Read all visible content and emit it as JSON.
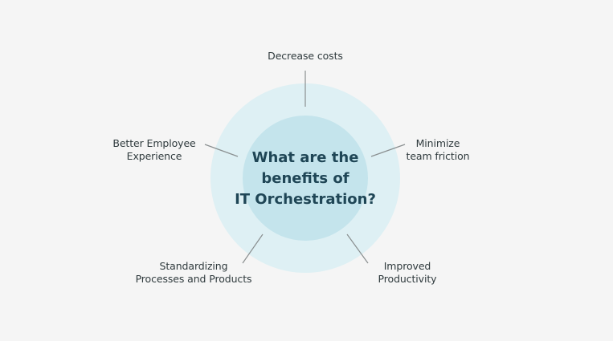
{
  "center": {
    "lines": [
      "What are the",
      "benefits of",
      "IT Orchestration?"
    ]
  },
  "benefits": [
    {
      "lines": [
        "Decrease costs"
      ]
    },
    {
      "lines": [
        "Minimize",
        "team friction"
      ]
    },
    {
      "lines": [
        "Improved",
        "Productivity"
      ]
    },
    {
      "lines": [
        "Standardizing",
        "Processes and Products"
      ]
    },
    {
      "lines": [
        "Better Employee",
        "Experience"
      ]
    }
  ],
  "colors": {
    "background": "#f5f5f5",
    "outer_circle": "#def0f4",
    "inner_circle": "#c4e4ec",
    "connector": "#8a8f90",
    "label_text": "#2f3a3d",
    "center_text": "#1f4656"
  }
}
